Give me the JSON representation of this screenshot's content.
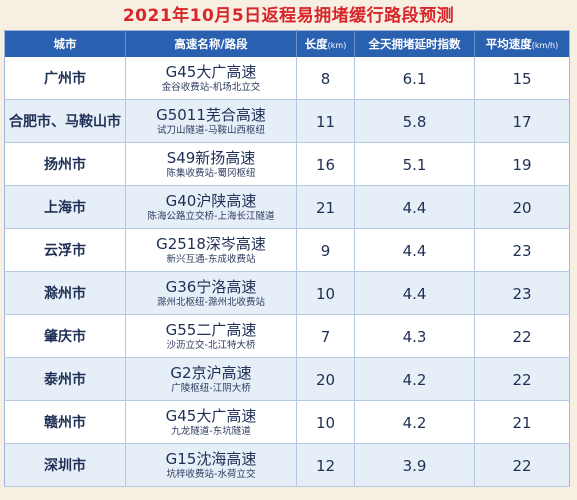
{
  "title": "2021年10月5日返程易拥堵缓行路段预测",
  "columns": {
    "city": "城市",
    "road": "高速名称/路段",
    "length": "长度",
    "length_unit": "(km)",
    "index": "全天拥堵延时指数",
    "speed": "平均速度",
    "speed_unit": "(km/h)"
  },
  "rows": [
    {
      "city": "广州市",
      "road_name": "G45大广高速",
      "section": "金谷收费站-机场北立交",
      "length": "8",
      "index": "6.1",
      "speed": "15"
    },
    {
      "city": "合肥市、马鞍山市",
      "road_name": "G5011芜合高速",
      "section": "试刀山隧道-马鞍山西枢纽",
      "length": "11",
      "index": "5.8",
      "speed": "17"
    },
    {
      "city": "扬州市",
      "road_name": "S49新扬高速",
      "section": "陈集收费站-蜀冈枢纽",
      "length": "16",
      "index": "5.1",
      "speed": "19"
    },
    {
      "city": "上海市",
      "road_name": "G40沪陕高速",
      "section": "陈海公路立交桥-上海长江隧道",
      "length": "21",
      "index": "4.4",
      "speed": "20"
    },
    {
      "city": "云浮市",
      "road_name": "G2518深岑高速",
      "section": "新兴互通-东成收费站",
      "length": "9",
      "index": "4.4",
      "speed": "23"
    },
    {
      "city": "滁州市",
      "road_name": "G36宁洛高速",
      "section": "滁州北枢纽-滁州北收费站",
      "length": "10",
      "index": "4.4",
      "speed": "23"
    },
    {
      "city": "肇庆市",
      "road_name": "G55二广高速",
      "section": "沙沥立交-北江特大桥",
      "length": "7",
      "index": "4.3",
      "speed": "22"
    },
    {
      "city": "泰州市",
      "road_name": "G2京沪高速",
      "section": "广陵枢纽-江阴大桥",
      "length": "20",
      "index": "4.2",
      "speed": "22"
    },
    {
      "city": "赣州市",
      "road_name": "G45大广高速",
      "section": "九龙隧道-东坑隧道",
      "length": "10",
      "index": "4.2",
      "speed": "21"
    },
    {
      "city": "深圳市",
      "road_name": "G15沈海高速",
      "section": "坑梓收费站-水荷立交",
      "length": "12",
      "index": "3.9",
      "speed": "22"
    }
  ]
}
